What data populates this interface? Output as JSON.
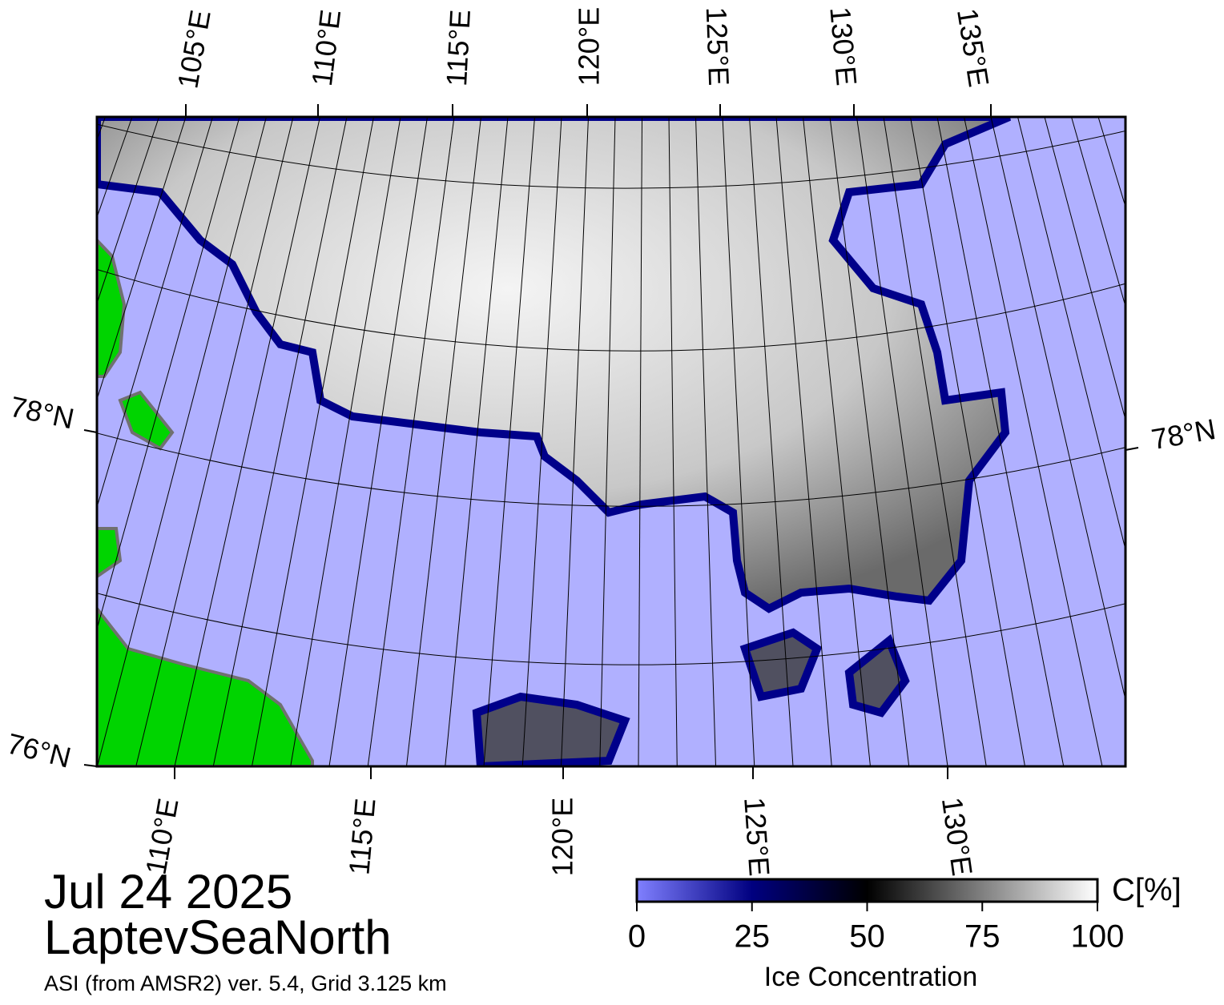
{
  "map": {
    "top_lon_labels": [
      "105°E",
      "110°E",
      "115°E",
      "120°E",
      "125°E",
      "130°E",
      "135°E"
    ],
    "bottom_lon_labels": [
      "110°E",
      "115°E",
      "120°E",
      "125°E",
      "130°E"
    ],
    "left_lat_labels": [
      "78°N",
      "76°N"
    ],
    "right_lat_labels": [
      "78°N"
    ]
  },
  "caption": {
    "date": "Jul 24 2025",
    "region": "LaptevSeaNorth",
    "source": "ASI (from AMSR2) ver. 5.4,  Grid 3.125 km"
  },
  "colorbar": {
    "label": "C[%]",
    "title": "Ice Concentration",
    "lim": [
      0,
      100
    ],
    "ticks": [
      0,
      25,
      50,
      75,
      100
    ]
  }
}
